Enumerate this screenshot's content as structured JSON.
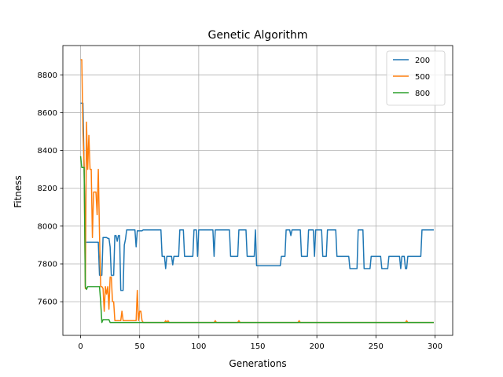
{
  "chart_data": {
    "type": "line",
    "title": "Genetic Algorithm",
    "xlabel": "Generations",
    "ylabel": "Fitness",
    "xlim": [
      -15,
      315
    ],
    "ylim": [
      7422,
      8955
    ],
    "xticks": [
      0,
      50,
      100,
      150,
      200,
      250,
      300
    ],
    "yticks": [
      7600,
      7800,
      8000,
      8200,
      8400,
      8600,
      8800
    ],
    "grid": true,
    "legend_position": "top-right",
    "series": [
      {
        "name": "200",
        "color": "#1f77b4",
        "points": [
          [
            0,
            8650
          ],
          [
            2,
            8650
          ],
          [
            3,
            8300
          ],
          [
            4,
            7915
          ],
          [
            5,
            7915
          ],
          [
            15,
            7915
          ],
          [
            16,
            7740
          ],
          [
            17,
            7740
          ],
          [
            18,
            7740
          ],
          [
            19,
            7940
          ],
          [
            22,
            7940
          ],
          [
            23,
            7935
          ],
          [
            24,
            7935
          ],
          [
            25,
            7890
          ],
          [
            26,
            7740
          ],
          [
            28,
            7740
          ],
          [
            29,
            7950
          ],
          [
            30,
            7950
          ],
          [
            31,
            7920
          ],
          [
            32,
            7950
          ],
          [
            33,
            7950
          ],
          [
            34,
            7660
          ],
          [
            36,
            7660
          ],
          [
            37,
            7900
          ],
          [
            38,
            7930
          ],
          [
            39,
            7980
          ],
          [
            46,
            7980
          ],
          [
            47,
            7890
          ],
          [
            48,
            7975
          ],
          [
            52,
            7975
          ],
          [
            53,
            7980
          ],
          [
            68,
            7980
          ],
          [
            69,
            7840
          ],
          [
            71,
            7840
          ],
          [
            72,
            7775
          ],
          [
            73,
            7840
          ],
          [
            77,
            7840
          ],
          [
            78,
            7795
          ],
          [
            79,
            7840
          ],
          [
            83,
            7840
          ],
          [
            84,
            7980
          ],
          [
            87,
            7980
          ],
          [
            88,
            7840
          ],
          [
            95,
            7840
          ],
          [
            96,
            7980
          ],
          [
            98,
            7980
          ],
          [
            99,
            7840
          ],
          [
            100,
            7980
          ],
          [
            112,
            7980
          ],
          [
            113,
            7840
          ],
          [
            114,
            7980
          ],
          [
            126,
            7980
          ],
          [
            127,
            7840
          ],
          [
            133,
            7840
          ],
          [
            134,
            7980
          ],
          [
            140,
            7980
          ],
          [
            141,
            7840
          ],
          [
            147,
            7840
          ],
          [
            148,
            7980
          ],
          [
            149,
            7790
          ],
          [
            169,
            7790
          ],
          [
            170,
            7840
          ],
          [
            173,
            7840
          ],
          [
            174,
            7980
          ],
          [
            177,
            7980
          ],
          [
            178,
            7950
          ],
          [
            179,
            7980
          ],
          [
            186,
            7980
          ],
          [
            187,
            7840
          ],
          [
            192,
            7840
          ],
          [
            193,
            7980
          ],
          [
            197,
            7980
          ],
          [
            198,
            7840
          ],
          [
            199,
            7980
          ],
          [
            204,
            7980
          ],
          [
            205,
            7840
          ],
          [
            208,
            7840
          ],
          [
            209,
            7980
          ],
          [
            216,
            7980
          ],
          [
            217,
            7840
          ],
          [
            227,
            7840
          ],
          [
            228,
            7775
          ],
          [
            234,
            7775
          ],
          [
            235,
            7980
          ],
          [
            239,
            7980
          ],
          [
            240,
            7775
          ],
          [
            245,
            7775
          ],
          [
            246,
            7840
          ],
          [
            254,
            7840
          ],
          [
            255,
            7775
          ],
          [
            260,
            7775
          ],
          [
            261,
            7840
          ],
          [
            270,
            7840
          ],
          [
            271,
            7775
          ],
          [
            272,
            7840
          ],
          [
            274,
            7840
          ],
          [
            275,
            7775
          ],
          [
            276,
            7775
          ],
          [
            277,
            7840
          ],
          [
            288,
            7840
          ],
          [
            289,
            7980
          ],
          [
            299,
            7980
          ]
        ]
      },
      {
        "name": "500",
        "color": "#ff7f0e",
        "points": [
          [
            0,
            8880
          ],
          [
            1,
            8880
          ],
          [
            2,
            8500
          ],
          [
            3,
            8320
          ],
          [
            4,
            7670
          ],
          [
            5,
            8550
          ],
          [
            6,
            8300
          ],
          [
            7,
            8480
          ],
          [
            8,
            8300
          ],
          [
            9,
            8300
          ],
          [
            10,
            7940
          ],
          [
            11,
            8180
          ],
          [
            12,
            8180
          ],
          [
            13,
            8180
          ],
          [
            14,
            8060
          ],
          [
            15,
            8300
          ],
          [
            16,
            7960
          ],
          [
            17,
            7680
          ],
          [
            18,
            7680
          ],
          [
            19,
            7670
          ],
          [
            20,
            7550
          ],
          [
            21,
            7680
          ],
          [
            22,
            7640
          ],
          [
            23,
            7680
          ],
          [
            24,
            7560
          ],
          [
            25,
            7730
          ],
          [
            26,
            7730
          ],
          [
            27,
            7600
          ],
          [
            28,
            7600
          ],
          [
            29,
            7500
          ],
          [
            34,
            7500
          ],
          [
            35,
            7550
          ],
          [
            36,
            7500
          ],
          [
            47,
            7500
          ],
          [
            48,
            7660
          ],
          [
            49,
            7500
          ],
          [
            50,
            7550
          ],
          [
            51,
            7550
          ],
          [
            52,
            7500
          ],
          [
            53,
            7490
          ],
          [
            71,
            7490
          ],
          [
            72,
            7500
          ],
          [
            73,
            7490
          ],
          [
            74,
            7500
          ],
          [
            75,
            7490
          ],
          [
            113,
            7490
          ],
          [
            114,
            7500
          ],
          [
            115,
            7490
          ],
          [
            133,
            7490
          ],
          [
            134,
            7500
          ],
          [
            135,
            7490
          ],
          [
            184,
            7490
          ],
          [
            185,
            7500
          ],
          [
            186,
            7490
          ],
          [
            275,
            7490
          ],
          [
            276,
            7500
          ],
          [
            277,
            7490
          ],
          [
            299,
            7490
          ]
        ]
      },
      {
        "name": "800",
        "color": "#2ca02c",
        "points": [
          [
            0,
            8370
          ],
          [
            1,
            8310
          ],
          [
            2,
            8310
          ],
          [
            3,
            8310
          ],
          [
            4,
            7680
          ],
          [
            5,
            7665
          ],
          [
            6,
            7680
          ],
          [
            16,
            7680
          ],
          [
            17,
            7600
          ],
          [
            18,
            7490
          ],
          [
            19,
            7505
          ],
          [
            24,
            7505
          ],
          [
            25,
            7490
          ],
          [
            299,
            7490
          ]
        ]
      }
    ]
  }
}
